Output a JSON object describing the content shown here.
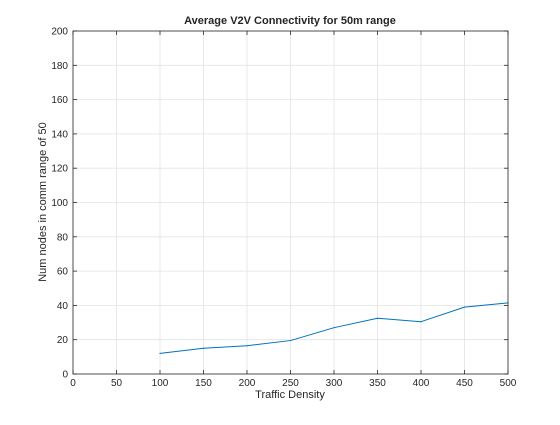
{
  "chart_data": {
    "type": "line",
    "title": "Average V2V Connectivity for 50m range",
    "xlabel": "Traffic Density",
    "ylabel": "Num nodes in comm range of 50",
    "xlim": [
      0,
      500
    ],
    "ylim": [
      0,
      200
    ],
    "xticks": [
      "0",
      "50",
      "100",
      "150",
      "200",
      "250",
      "300",
      "350",
      "400",
      "450",
      "500"
    ],
    "yticks": [
      "0",
      "20",
      "40",
      "60",
      "80",
      "100",
      "120",
      "140",
      "160",
      "180",
      "200"
    ],
    "grid": true,
    "legend": "none",
    "line_color": "#0072bd",
    "series": [
      {
        "x": [
          100,
          150,
          200,
          250,
          300,
          350,
          400,
          450,
          500
        ],
        "y": [
          12,
          15,
          16.5,
          19.5,
          27,
          32.5,
          30.5,
          39,
          41.5
        ]
      }
    ]
  }
}
